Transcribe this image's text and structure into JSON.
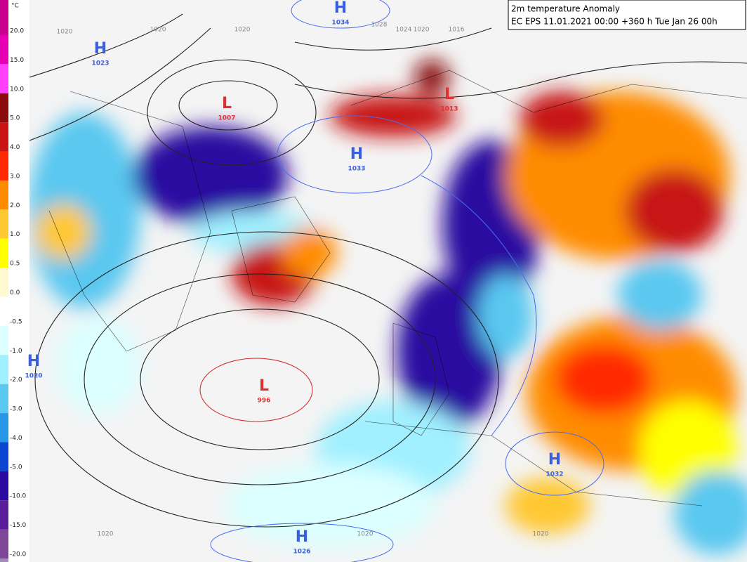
{
  "header": {
    "title": "2m temperature Anomaly",
    "subtitle": "EC EPS 11.01.2021 00:00 +360 h Tue Jan 26 00h"
  },
  "legend": {
    "unit": "°C",
    "labels": [
      "20.0",
      "15.0",
      "10.0",
      "5.0",
      "4.0",
      "3.0",
      "2.0",
      "1.0",
      "0.5",
      "0.0",
      "-0.5",
      "-1.0",
      "-2.0",
      "-3.0",
      "-4.0",
      "-5.0",
      "-10.0",
      "-15.0",
      "-20.0"
    ],
    "colors": [
      "#c8008c",
      "#e600b4",
      "#ff40ff",
      "#8b0a0a",
      "#c81414",
      "#ff2a00",
      "#ff8c00",
      "#ffc832",
      "#ffff00",
      "#fff8d0",
      "#ffffff",
      "#dcffff",
      "#a0f0ff",
      "#5ac8f0",
      "#2896e6",
      "#0a46d2",
      "#2a0aa0",
      "#5a1e9b",
      "#7d4696",
      "#a08cb4"
    ]
  },
  "pressure_centers": [
    {
      "letter": "H",
      "value": "1034"
    },
    {
      "letter": "H",
      "value": "1023"
    },
    {
      "letter": "L",
      "value": "1007"
    },
    {
      "letter": "L",
      "value": "1013"
    },
    {
      "letter": "H",
      "value": "1033"
    },
    {
      "letter": "L",
      "value": "996"
    },
    {
      "letter": "H",
      "value": "1026"
    },
    {
      "letter": "H",
      "value": "1032"
    },
    {
      "letter": "H",
      "value": "1020"
    }
  ],
  "isobar_labels": [
    "1020",
    "1020",
    "1020",
    "1028",
    "1024",
    "1020",
    "1016",
    "1020",
    "1020",
    "1020"
  ]
}
